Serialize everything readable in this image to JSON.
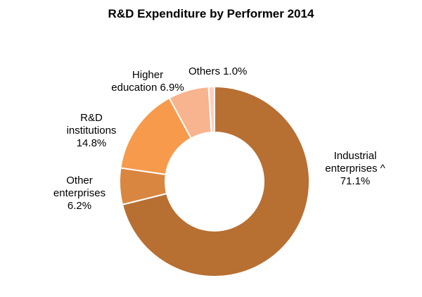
{
  "chart_data": {
    "type": "pie",
    "subtype": "donut",
    "title": "R&D Expenditure by Performer 2014",
    "slices": [
      {
        "id": "industrial",
        "label_lines": [
          "Industrial",
          "enterprises ^",
          "71.1%"
        ],
        "name": "Industrial enterprises ^",
        "value": 71.1,
        "color": "#B86F32"
      },
      {
        "id": "other-ent",
        "label_lines": [
          "Other",
          "enterprises",
          "6.2%"
        ],
        "name": "Other enterprises",
        "value": 6.2,
        "color": "#D98640"
      },
      {
        "id": "rd",
        "label_lines": [
          "R&D",
          "institutions",
          "14.8%"
        ],
        "name": "R&D institutions",
        "value": 14.8,
        "color": "#F79A4C"
      },
      {
        "id": "higher",
        "label_lines": [
          "Higher",
          "education 6.9%"
        ],
        "name": "Higher education",
        "value": 6.9,
        "color": "#F8B48E"
      },
      {
        "id": "others",
        "label_lines": [
          "Others 1.0%"
        ],
        "name": "Others",
        "value": 1.0,
        "color": "#FCCFBE"
      }
    ],
    "start": "12 o'clock",
    "direction": "clockwise",
    "legend": "none"
  }
}
